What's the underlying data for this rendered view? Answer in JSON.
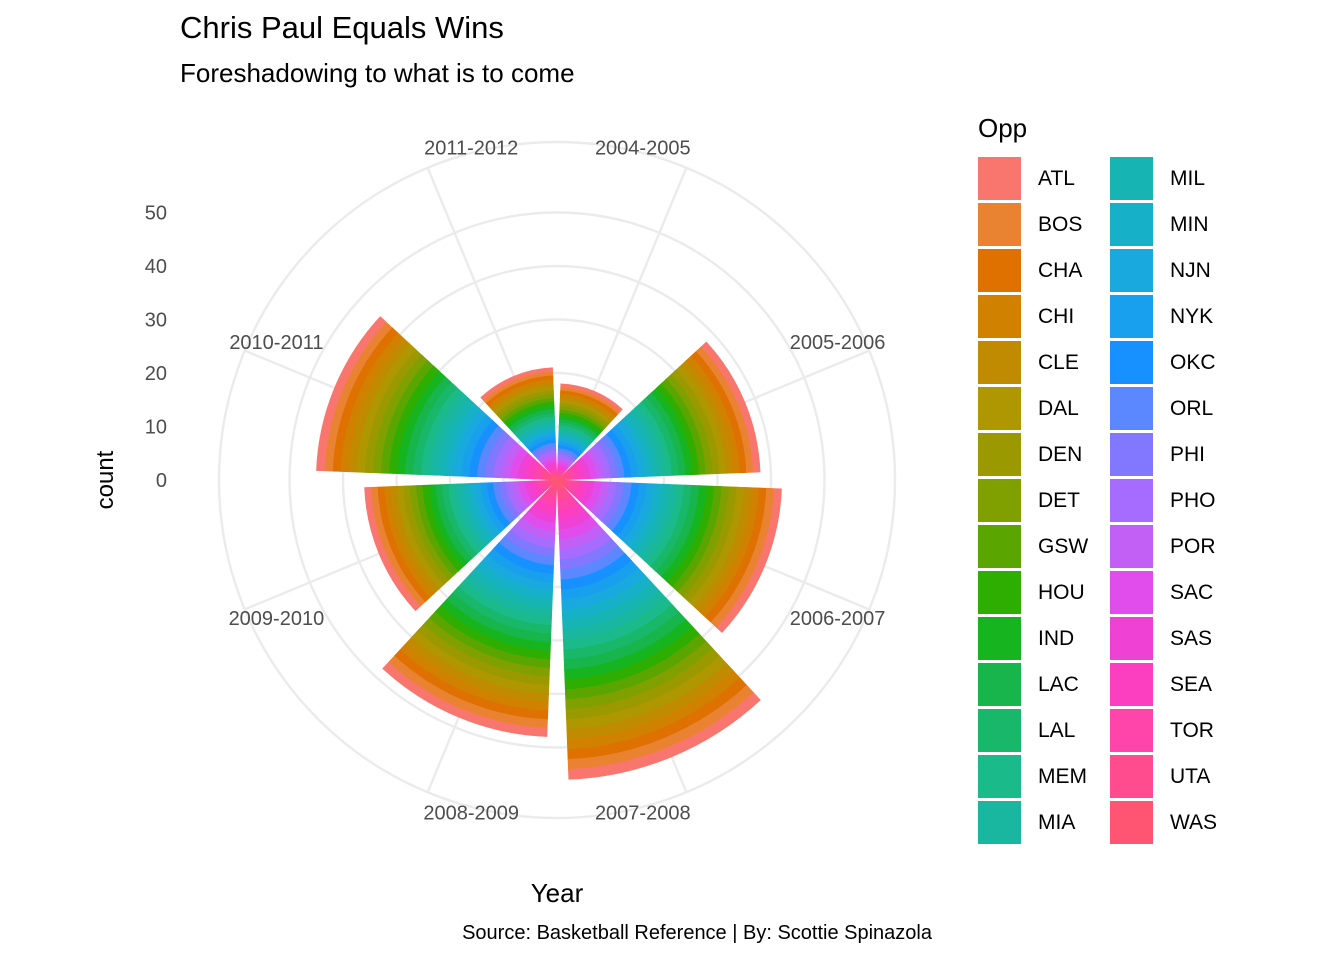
{
  "title": "Chris Paul Equals Wins",
  "subtitle": "Foreshadowing to what is to come",
  "caption": "Source: Basketball Reference | By: Scottie Spinazola",
  "chart_data": {
    "type": "bar",
    "coord": "polar",
    "stacked": true,
    "title": "Chris Paul Equals Wins",
    "subtitle": "Foreshadowing to what is to come",
    "xlabel": "Year",
    "ylabel": "count",
    "ylim": [
      0,
      50
    ],
    "y_ticks": [
      0,
      10,
      20,
      30,
      40,
      50
    ],
    "grid": true,
    "legend_title": "Opp",
    "legend_position": "right",
    "categories": [
      "2004-2005",
      "2005-2006",
      "2006-2007",
      "2007-2008",
      "2008-2009",
      "2009-2010",
      "2010-2011",
      "2011-2012"
    ],
    "category_order_clockwise_from_top": [
      "2004-2005",
      "2005-2006",
      "2006-2007",
      "2007-2008",
      "2008-2009",
      "2009-2010",
      "2010-2011",
      "2011-2012"
    ],
    "totals": [
      18,
      38,
      42,
      56,
      48,
      36,
      45,
      21
    ],
    "series": [
      {
        "name": "ATL",
        "color": "#F8766D"
      },
      {
        "name": "BOS",
        "color": "#EA8331"
      },
      {
        "name": "CHA",
        "color": "#DE7100"
      },
      {
        "name": "CHI",
        "color": "#D08100"
      },
      {
        "name": "CLE",
        "color": "#C08B00"
      },
      {
        "name": "DAL",
        "color": "#AE9700"
      },
      {
        "name": "DEN",
        "color": "#9A9900"
      },
      {
        "name": "DET",
        "color": "#80A000"
      },
      {
        "name": "GSW",
        "color": "#5BA500"
      },
      {
        "name": "HOU",
        "color": "#2EAE00"
      },
      {
        "name": "IND",
        "color": "#16B520"
      },
      {
        "name": "LAC",
        "color": "#17B54B"
      },
      {
        "name": "LAL",
        "color": "#19B769"
      },
      {
        "name": "MEM",
        "color": "#1ABA8A"
      },
      {
        "name": "MIA",
        "color": "#19B7A0"
      },
      {
        "name": "MIL",
        "color": "#16B5B3"
      },
      {
        "name": "MIN",
        "color": "#16B1C8"
      },
      {
        "name": "NJN",
        "color": "#1AA9DE"
      },
      {
        "name": "NYK",
        "color": "#18A0EE"
      },
      {
        "name": "OKC",
        "color": "#1691FF"
      },
      {
        "name": "ORL",
        "color": "#5B88FF"
      },
      {
        "name": "PHI",
        "color": "#8277FF"
      },
      {
        "name": "PHO",
        "color": "#A66CFF"
      },
      {
        "name": "POR",
        "color": "#C260F5"
      },
      {
        "name": "SAC",
        "color": "#E14DEC"
      },
      {
        "name": "SAS",
        "color": "#F041D5"
      },
      {
        "name": "SEA",
        "color": "#FC3FC0"
      },
      {
        "name": "TOR",
        "color": "#FF45AA"
      },
      {
        "name": "UTA",
        "color": "#FF4C8F"
      },
      {
        "name": "WAS",
        "color": "#FF5573"
      }
    ]
  }
}
